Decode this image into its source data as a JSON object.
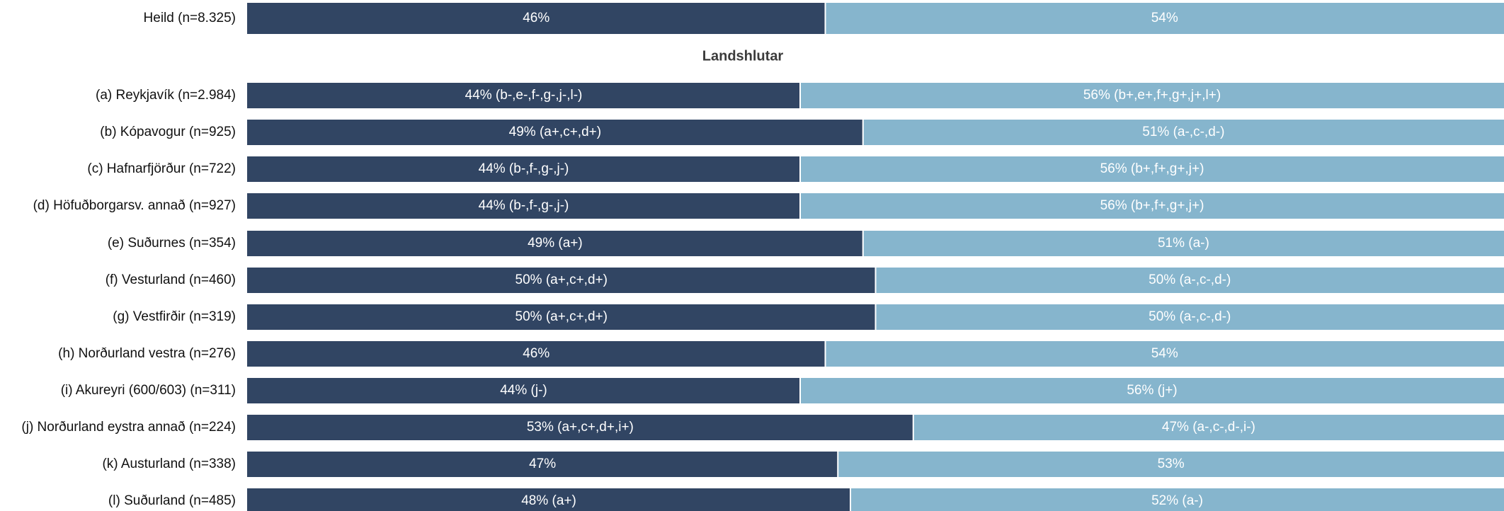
{
  "chart_data": {
    "type": "bar",
    "orientation": "horizontal",
    "stacked": true,
    "normalized_percent": true,
    "colors": {
      "first": "#314563",
      "second": "#86b5cd"
    },
    "section_title": "Landshlutar",
    "rows": [
      {
        "label": "Heild (n=8.325)",
        "value1": 46,
        "value2": 54,
        "text1": "46%",
        "text2": "54%"
      },
      {
        "label": "(a) Reykjavík (n=2.984)",
        "value1": 44,
        "value2": 56,
        "text1": "44% (b-,e-,f-,g-,j-,l-)",
        "text2": "56% (b+,e+,f+,g+,j+,l+)"
      },
      {
        "label": "(b) Kópavogur (n=925)",
        "value1": 49,
        "value2": 51,
        "text1": "49% (a+,c+,d+)",
        "text2": "51% (a-,c-,d-)"
      },
      {
        "label": "(c) Hafnarfjörður (n=722)",
        "value1": 44,
        "value2": 56,
        "text1": "44% (b-,f-,g-,j-)",
        "text2": "56% (b+,f+,g+,j+)"
      },
      {
        "label": "(d) Höfuðborgarsv. annað (n=927)",
        "value1": 44,
        "value2": 56,
        "text1": "44% (b-,f-,g-,j-)",
        "text2": "56% (b+,f+,g+,j+)"
      },
      {
        "label": "(e) Suðurnes (n=354)",
        "value1": 49,
        "value2": 51,
        "text1": "49% (a+)",
        "text2": "51% (a-)"
      },
      {
        "label": "(f) Vesturland (n=460)",
        "value1": 50,
        "value2": 50,
        "text1": "50% (a+,c+,d+)",
        "text2": "50% (a-,c-,d-)"
      },
      {
        "label": "(g) Vestfirðir (n=319)",
        "value1": 50,
        "value2": 50,
        "text1": "50% (a+,c+,d+)",
        "text2": "50% (a-,c-,d-)"
      },
      {
        "label": "(h) Norðurland vestra (n=276)",
        "value1": 46,
        "value2": 54,
        "text1": "46%",
        "text2": "54%"
      },
      {
        "label": "(i) Akureyri (600/603) (n=311)",
        "value1": 44,
        "value2": 56,
        "text1": "44% (j-)",
        "text2": "56% (j+)"
      },
      {
        "label": "(j) Norðurland eystra annað (n=224)",
        "value1": 53,
        "value2": 47,
        "text1": "53% (a+,c+,d+,i+)",
        "text2": "47% (a-,c-,d-,i-)"
      },
      {
        "label": "(k) Austurland (n=338)",
        "value1": 47,
        "value2": 53,
        "text1": "47%",
        "text2": "53%"
      },
      {
        "label": "(l) Suðurland (n=485)",
        "value1": 48,
        "value2": 52,
        "text1": "48% (a+)",
        "text2": "52% (a-)"
      }
    ]
  }
}
